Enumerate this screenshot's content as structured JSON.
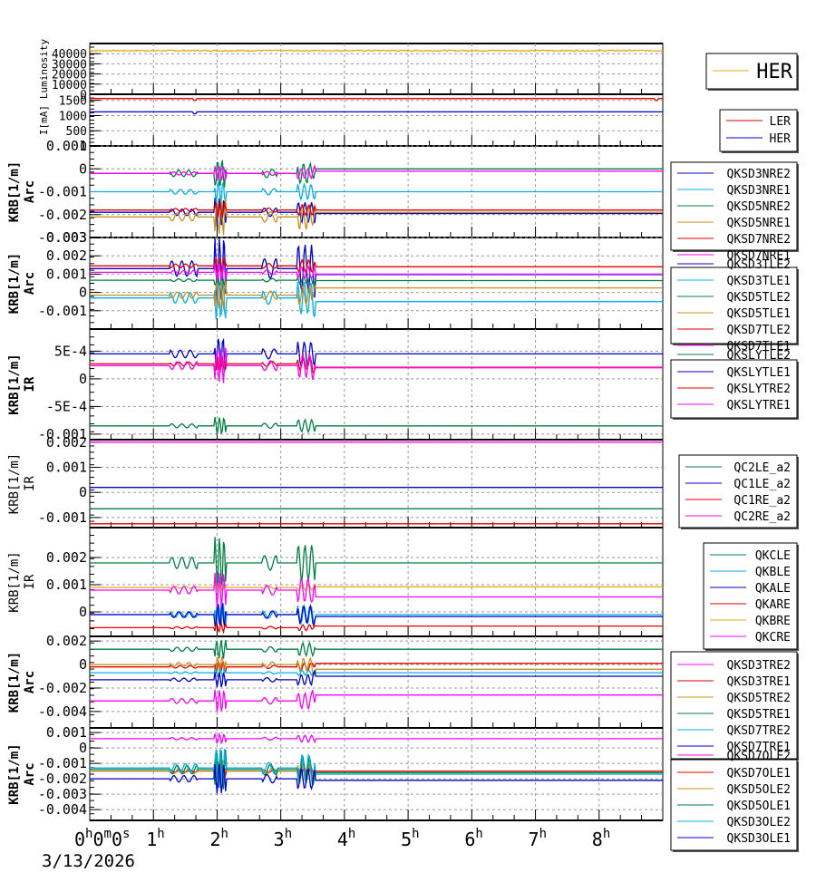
{
  "chart_data": {
    "type": "line",
    "title": "",
    "x_unit": "hours",
    "xlim": [
      0,
      9
    ],
    "x_tick_values": [
      0,
      1,
      2,
      3,
      4,
      5,
      6,
      7,
      8
    ],
    "x_tick_labels": [
      {
        "base": "0",
        "sup": "h",
        "rest": [
          {
            "base": "0",
            "sup": "m"
          },
          {
            "base": "0",
            "sup": "s"
          }
        ]
      },
      {
        "base": "1",
        "sup": "h"
      },
      {
        "base": "2",
        "sup": "h"
      },
      {
        "base": "3",
        "sup": "h"
      },
      {
        "base": "4",
        "sup": "h"
      },
      {
        "base": "5",
        "sup": "h"
      },
      {
        "base": "6",
        "sup": "h"
      },
      {
        "base": "7",
        "sup": "h"
      },
      {
        "base": "8",
        "sup": "h"
      }
    ],
    "date_label": "3/13/2026",
    "grid": true,
    "event_times_h": [
      1.3,
      1.5,
      2.0,
      2.1,
      2.8,
      3.3,
      3.45
    ],
    "panels": [
      {
        "id": "luminosity",
        "ylabel": [
          "Luminosity"
        ],
        "ylim": [
          0,
          50000
        ],
        "yticks": [
          0,
          10000,
          20000,
          30000,
          40000
        ],
        "ytick_labels": [
          "0",
          "10000",
          "20000",
          "30000",
          "40000"
        ],
        "legend": {
          "position": "right",
          "large": true
        },
        "series": [
          {
            "name": "HER",
            "color": "#e6a817",
            "base": 43000,
            "noise": 600
          }
        ]
      },
      {
        "id": "current",
        "ylabel": [
          "I[mA]"
        ],
        "ylim": [
          0,
          1700
        ],
        "yticks": [
          0,
          500,
          1000,
          1500
        ],
        "ytick_labels": [
          "0",
          "500",
          "1000",
          "1500"
        ],
        "legend": {
          "position": "right"
        },
        "series": [
          {
            "name": "LER",
            "color": "#e60000",
            "base": 1560
          },
          {
            "name": "HER",
            "color": "#0000cc",
            "base": 1120
          }
        ]
      },
      {
        "id": "arc-nre",
        "ylabel": [
          "KRB[1/m]",
          "Arc"
        ],
        "ylim": [
          -0.003,
          0.001
        ],
        "yticks": [
          -0.003,
          -0.002,
          -0.001,
          0,
          0.001
        ],
        "ytick_labels": [
          "-0.003",
          "-0.002",
          "-0.001",
          "0",
          "0.001"
        ],
        "legend": {
          "position": "right"
        },
        "series": [
          {
            "name": "QKSD3NRE2",
            "color": "#0000cc",
            "base": -0.0019,
            "after": -0.00195,
            "amp": 0.0004
          },
          {
            "name": "QKSD3NRE1",
            "color": "#00b0e8",
            "base": -0.001,
            "after": -0.001,
            "amp": 0.0003
          },
          {
            "name": "QKSD5NRE2",
            "color": "#008040",
            "base": -0.0002,
            "after": 0.0,
            "amp": 0.0004
          },
          {
            "name": "QKSD5NRE1",
            "color": "#c89020",
            "base": -0.0021,
            "after": -0.0019,
            "amp": 0.0005
          },
          {
            "name": "QKSD7NRE2",
            "color": "#e60000",
            "base": -0.0018,
            "after": -0.0018,
            "amp": 0.0002
          },
          {
            "name": "QKSD7NRE1",
            "color": "#ff00ff",
            "base": -0.0002,
            "after": -0.0001,
            "amp": 0.0002
          }
        ]
      },
      {
        "id": "arc-tle",
        "ylabel": [
          "KRB[1/m]",
          "Arc"
        ],
        "ylim": [
          -0.002,
          0.003
        ],
        "yticks": [
          -0.001,
          0,
          0.001,
          0.002,
          0.003
        ],
        "ytick_labels": [
          "-0.001",
          "0",
          "0.001",
          "0.002",
          "0.003"
        ],
        "legend": {
          "position": "right"
        },
        "series": [
          {
            "name": "QKSD3TLE2",
            "color": "#0000cc",
            "base": 0.0013,
            "after": 0.00098,
            "amp": 0.0012
          },
          {
            "name": "QKSD3TLE1",
            "color": "#00b0e8",
            "base": -0.0003,
            "after": -0.0005,
            "amp": 0.0008
          },
          {
            "name": "QKSD5TLE2",
            "color": "#008040",
            "base": 0.00067,
            "after": 0.00065,
            "amp": 0.0002
          },
          {
            "name": "QKSD5TLE1",
            "color": "#c89020",
            "base": -0.00015,
            "after": 0.00025,
            "amp": 0.0005
          },
          {
            "name": "QKSD7TLE2",
            "color": "#e60000",
            "base": 0.00145,
            "after": 0.0014,
            "amp": 0.0003
          },
          {
            "name": "QKSD7TLE1",
            "color": "#ff00ff",
            "base": 0.0011,
            "after": 0.001,
            "amp": 0.0003
          }
        ]
      },
      {
        "id": "ir-sly",
        "ylabel": [
          "KRB[1/m]",
          "IR"
        ],
        "ylim": [
          -0.0011,
          0.0009
        ],
        "yticks": [
          -0.001,
          -0.0005,
          0,
          0.0005
        ],
        "ytick_labels": [
          "-0.001",
          "-5E-4",
          "0",
          "5E-4"
        ],
        "legend": {
          "position": "right"
        },
        "series": [
          {
            "name": "QKSLYTLE2",
            "color": "#008040",
            "base": -0.00085,
            "after": -0.00085,
            "amp": 0.0001
          },
          {
            "name": "QKSLYTLE1",
            "color": "#0000cc",
            "base": 0.00045,
            "after": 0.00045,
            "amp": 0.0002
          },
          {
            "name": "QKSLYTRE2",
            "color": "#e60000",
            "base": 0.00027,
            "after": 0.00021,
            "amp": 0.0001
          },
          {
            "name": "QKSLYTRE1",
            "color": "#ff00ff",
            "base": 0.00024,
            "after": 0.0002,
            "amp": 0.0002
          }
        ]
      },
      {
        "id": "ir-qc",
        "ylabel": [
          "KRB[1/m]",
          "IR"
        ],
        "ylim": [
          -0.0014,
          0.0021
        ],
        "yticks": [
          -0.001,
          0,
          0.001,
          0.002
        ],
        "ytick_labels": [
          "-0.001",
          "0",
          "0.001",
          "0.002"
        ],
        "legend": {
          "position": "right"
        },
        "series": [
          {
            "name": "QC2LE_a2",
            "color": "#008040",
            "base": -0.00065,
            "after": -0.00065,
            "amp": 0
          },
          {
            "name": "QC1LE_a2",
            "color": "#0000cc",
            "base": 0.0002,
            "after": 0.0002,
            "amp": 0
          },
          {
            "name": "QC1RE_a2",
            "color": "#e60000",
            "base": -0.00125,
            "after": -0.00125,
            "amp": 0
          },
          {
            "name": "QC2RE_a2",
            "color": "#ff00ff",
            "base": 0.002,
            "after": 0.002,
            "amp": 0
          }
        ]
      },
      {
        "id": "ir-qk",
        "ylabel": [
          "KRB[1/m]",
          "IR"
        ],
        "ylim": [
          -0.0009,
          0.0031
        ],
        "yticks": [
          0,
          0.001,
          0.002
        ],
        "ytick_labels": [
          "0",
          "0.001",
          "0.002"
        ],
        "legend": {
          "position": "right"
        },
        "series": [
          {
            "name": "QKCLE",
            "color": "#008040",
            "base": 0.0018,
            "after": 0.0018,
            "amp": 0.0006
          },
          {
            "name": "QKBLE",
            "color": "#00b0e8",
            "base": -0.0001,
            "after": -0.0001,
            "amp": 0.0003
          },
          {
            "name": "QKALE",
            "color": "#0000cc",
            "base": -0.0001,
            "after": -0.00017,
            "amp": 0.0003
          },
          {
            "name": "QKARE",
            "color": "#e60000",
            "base": -0.00058,
            "after": -0.00052,
            "amp": 0.0001
          },
          {
            "name": "QKBRE",
            "color": "#e6a817",
            "base": 0.0009,
            "after": 0.00092,
            "amp": 0.0001
          },
          {
            "name": "QKCRE",
            "color": "#ff00ff",
            "base": 0.0008,
            "after": 0.00055,
            "amp": 0.0004
          }
        ]
      },
      {
        "id": "arc-tre",
        "ylabel": [
          "KRB[1/m]",
          "Arc"
        ],
        "ylim": [
          -0.0054,
          0.0024
        ],
        "yticks": [
          -0.004,
          -0.002,
          0,
          0.002
        ],
        "ytick_labels": [
          "-0.004",
          "-0.002",
          "0",
          "0.002"
        ],
        "legend": {
          "position": "right"
        },
        "series": [
          {
            "name": "QKSD3TRE2",
            "color": "#ff00ff",
            "base": -0.0031,
            "after": -0.0026,
            "amp": 0.0006
          },
          {
            "name": "QKSD3TRE1",
            "color": "#e60000",
            "base": -0.0002,
            "after": 0.0001,
            "amp": 0.0003
          },
          {
            "name": "QKSD5TRE2",
            "color": "#c89020",
            "base": 0.0,
            "after": -0.0004,
            "amp": 0.0005
          },
          {
            "name": "QKSD5TRE1",
            "color": "#008040",
            "base": 0.0013,
            "after": 0.0013,
            "amp": 0.0005
          },
          {
            "name": "QKSD7TRE2",
            "color": "#00b0e8",
            "base": -0.0007,
            "after": -0.0007,
            "amp": 0.0002
          },
          {
            "name": "QKSD7TRE1",
            "color": "#0000cc",
            "base": -0.0013,
            "after": -0.001,
            "amp": 0.0004
          }
        ]
      },
      {
        "id": "arc-ole",
        "ylabel": [
          "KRB[1/m]",
          "Arc"
        ],
        "ylim": [
          -0.0047,
          0.0013
        ],
        "yticks": [
          -0.004,
          -0.003,
          -0.002,
          -0.001,
          0,
          0.001
        ],
        "ytick_labels": [
          "-0.004",
          "-0.003",
          "-0.002",
          "-0.001",
          "0",
          "0.001"
        ],
        "legend": {
          "position": "right"
        },
        "series": [
          {
            "name": "QKSD7OLE2",
            "color": "#ff00ff",
            "base": 0.0006,
            "after": 0.0006,
            "amp": 0.0002
          },
          {
            "name": "QKSD7OLE1",
            "color": "#e60000",
            "base": -0.0015,
            "after": -0.0015,
            "amp": 0.0002
          },
          {
            "name": "QKSD5OLE2",
            "color": "#c89020",
            "base": -0.0015,
            "after": -0.0017,
            "amp": 0.0005
          },
          {
            "name": "QKSD5OLE1",
            "color": "#008040",
            "base": -0.0014,
            "after": -0.0016,
            "amp": 0.0008
          },
          {
            "name": "QKSD3OLE2",
            "color": "#00b0e8",
            "base": -0.0013,
            "after": -0.0017,
            "amp": 0.0008
          },
          {
            "name": "QKSD3OLE1",
            "color": "#0000cc",
            "base": -0.002,
            "after": -0.0021,
            "amp": 0.0006
          }
        ]
      }
    ]
  }
}
